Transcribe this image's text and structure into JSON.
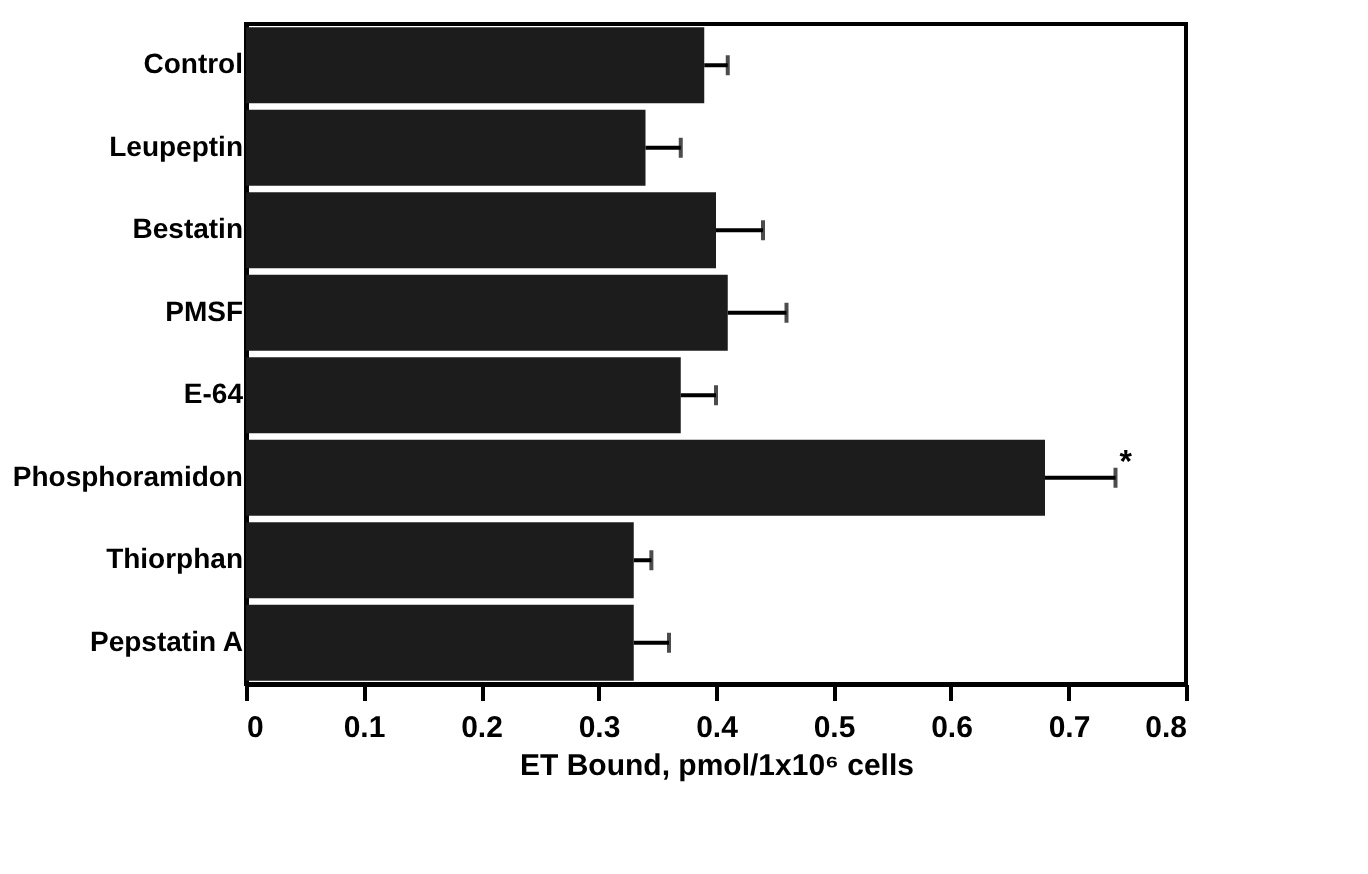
{
  "chart_data": {
    "type": "bar",
    "orientation": "horizontal",
    "categories": [
      "Control",
      "Leupeptin",
      "Bestatin",
      "PMSF",
      "E-64",
      "Phosphoramidon",
      "Thiorphan",
      "Pepstatin  A"
    ],
    "values": [
      0.39,
      0.34,
      0.4,
      0.41,
      0.37,
      0.68,
      0.33,
      0.33
    ],
    "errors": [
      0.02,
      0.03,
      0.04,
      0.05,
      0.03,
      0.06,
      0.015,
      0.03
    ],
    "color": "#1c1c1c",
    "xlabel": "ET Bound, pmol/1x10⁶ cells",
    "xlim": [
      0,
      0.8
    ],
    "xticks": [
      0,
      0.1,
      0.2,
      0.3,
      0.4,
      0.5,
      0.6,
      0.7,
      0.8
    ],
    "annotations": [
      {
        "text": "*",
        "x": 0.74,
        "y": "Phosphoramidon"
      }
    ],
    "grid": false
  }
}
